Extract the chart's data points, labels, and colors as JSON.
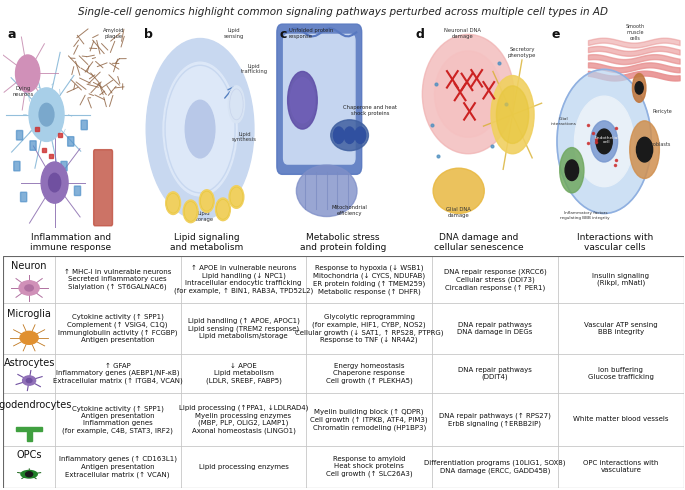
{
  "title": "Single-cell genomics highlight common signaling pathways perturbed across multiple cell types in AD",
  "panel_labels": [
    "a",
    "b",
    "c",
    "d",
    "e"
  ],
  "panel_subtitles": [
    "Inflammation and\nimmune response",
    "Lipid signaling\nand metabolism",
    "Metabolic stress\nand protein folding",
    "DNA damage and\ncellular senescence",
    "Interactions with\nvascular cells"
  ],
  "row_labels": [
    "Neuron",
    "Microglia",
    "Astrocytes",
    "Oligodendrocytes",
    "OPCs"
  ],
  "cell_data": [
    [
      "↑ MHC-I in vulnerable neurons\nSecreted inflammatory cues\nSialylation (↑ ST6GALNAC6)",
      "↑ APOE in vulnerable neurons\nLipid handling (↓ NPC1)\nIntracellular endocytic trafficking\n(for example, ↑ BIN1, RAB3A, TPD52L2)",
      "Response to hypoxia (↓ WSB1)\nMitochondria (↓ CYCS, NDUFAB)\nER protein folding (↑ TMEM259)\nMetabolic response (↑ DHFR)",
      "DNA repair response (XRCC6)\nCellular stress (DDI73)\nCircadian response (↑ PER1)",
      "Insulin signaling\n(Rikpl, mNatl)"
    ],
    [
      "Cytokine activity (↑ SPP1)\nComplement (↑ VSIG4, C1Q)\nImmunglobulin activity (↑ FCGBP)\nAntigen presentation",
      "Lipid handling (↑ APOE, APOC1)\nLipid sensing (TREM2 response)\nLipid metabolism/storage",
      "Glycolytic reprogramming\n(for example, HIF1, CYBP, NOS2)\nCellular growth (↓ SAT1, ↑ RPS28, PTPRG)\nResponse to TNF (↓ NR4A2)",
      "DNA repair pathways\nDNA damage in DEGs",
      "Vascular ATP sensing\nBBB integrity"
    ],
    [
      "↑ GFAP\nInflammatory genes (AEBP1/NF-κB)\nExtracellular matrix (↑ ITGB4, VCAN)",
      "↓ APOE\nLipid metabolism\n(LDLR, SREBF, FABP5)",
      "Energy homeostasis\nChaperone response\nCell growth (↑ PLEKHA5)",
      "DNA repair pathways\n(DDIT4)",
      "Ion buffering\nGlucose trafficking"
    ],
    [
      "Cytokine activity (↑ SPP1)\nAntigen presentation\nInflammation genes\n(for example, C4B, STAT3, IRF2)",
      "Lipid processing (↑PPA1, ↓LDLRAD4)\nMyelin processing enzymes\n(MBP, PLP, OLIG2, LAMP1)\nAxonal homeostasis (LINGO1)",
      "Myelin building block (↑ QDPR)\nCell growth (↑ ITPKB, ATF4, PIM3)\nChromatin remodeling (HP1BP3)",
      "DNA repair pathways (↑ RPS27)\nErbB signaling (↑ERBB2IP)",
      "White matter blood vessels"
    ],
    [
      "Inflammatory genes (↑ CD163L1)\nAntigen presentation\nExtracellular matrix (↑ VCAN)",
      "Lipid processing enzymes",
      "Response to amyloid\nHeat shock proteins\nCell growth (↑ SLC26A3)",
      "Differentiation programs (10LIG1, SOX8)\nDNA damage (ERCC, GADD45B)",
      "OPC interactions with\nvasculature"
    ]
  ],
  "grid_color": "#bbbbbb",
  "title_fontsize": 7.5,
  "cell_fontsize": 5.0,
  "row_label_fontsize": 7.0
}
